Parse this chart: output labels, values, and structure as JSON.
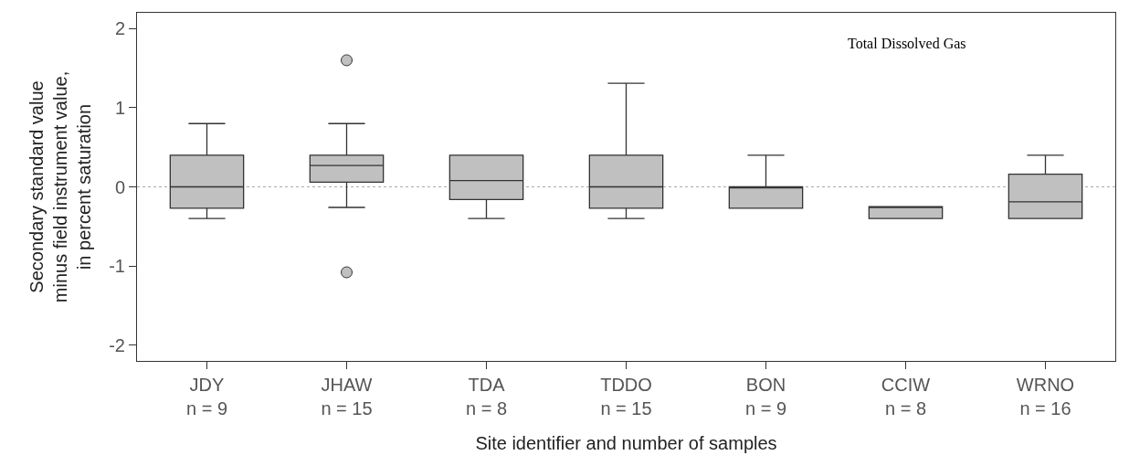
{
  "chart_data": {
    "type": "box",
    "categories": [
      "JDY\nn = 9",
      "JHAW\nn = 15",
      "TDA\nn = 8",
      "TDDO\nn = 15",
      "BON\nn = 9",
      "CCIW\nn = 8",
      "WRNO\nn = 16"
    ],
    "boxes": [
      {
        "low": -0.4,
        "q1": -0.27,
        "median": 0,
        "q3": 0.4,
        "high": 0.8
      },
      {
        "low": -0.26,
        "q1": 0.06,
        "median": 0.27,
        "q3": 0.4,
        "high": 0.8,
        "outliers": [
          1.6,
          -1.08
        ]
      },
      {
        "low": -0.4,
        "q1": -0.16,
        "median": 0.08,
        "q3": 0.4,
        "high": 0.4
      },
      {
        "low": -0.4,
        "q1": -0.27,
        "median": 0,
        "q3": 0.4,
        "high": 1.31
      },
      {
        "low": -0.27,
        "q1": -0.27,
        "median": 0,
        "q3": 0,
        "high": 0.4
      },
      {
        "low": -0.4,
        "q1": -0.4,
        "median": -0.25,
        "q3": -0.25,
        "high": -0.25
      },
      {
        "low": -0.4,
        "q1": -0.4,
        "median": -0.19,
        "q3": 0.16,
        "high": 0.4
      }
    ],
    "color": "#c0c0c0",
    "xlabel": "Site identifier and number of samples",
    "ylabel": "Secondary standard value\nminus field instrument value,\nin percent saturation",
    "ylim": [
      -2.2,
      2.2
    ],
    "yticks": [
      -2,
      -1,
      0,
      1,
      2
    ],
    "ref_lines": [
      {
        "axis": "y",
        "value": 0,
        "color": "#aaaaaa",
        "line_style": "dotted"
      }
    ],
    "annotations": [
      "Total Dissolved Gas"
    ]
  }
}
